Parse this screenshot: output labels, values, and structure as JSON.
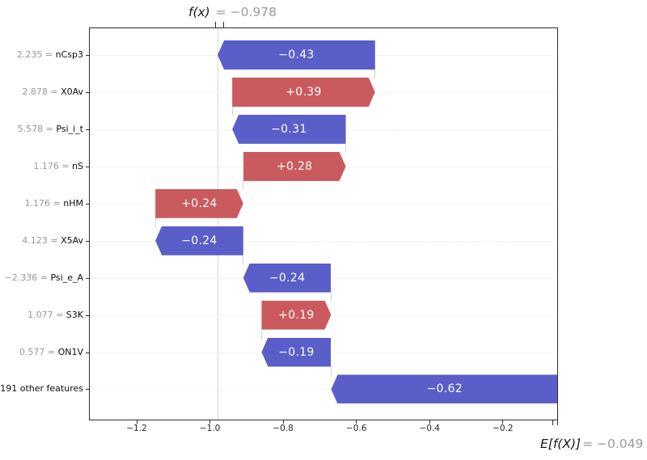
{
  "title": {
    "fx": "f(x)",
    "fx_value": "= −0.978"
  },
  "base_label": {
    "text": "E[f(X)]",
    "value": "= −0.049"
  },
  "chart_data": {
    "type": "bar",
    "subtype": "shap-waterfall",
    "fx": -0.978,
    "base_value": -0.049,
    "x_axis": {
      "min": -1.3303,
      "max": -0.0494,
      "ticks": [
        -1.2,
        -1.0,
        -0.8,
        -0.6,
        -0.4,
        -0.2
      ],
      "tick_labels": [
        "−1.2",
        "−1.0",
        "−0.8",
        "−0.6",
        "−0.4",
        "−0.2"
      ]
    },
    "colors": {
      "positive": "#CA5A5E",
      "negative": "#5A5EC8"
    },
    "rows": [
      {
        "prefix": "2.235 = ",
        "feature": "nCsp3",
        "shap": -0.43,
        "label": "−0.43",
        "start": -0.549,
        "end": -0.979,
        "sign": "neg"
      },
      {
        "prefix": "2.878 = ",
        "feature": "X0Av",
        "shap": 0.39,
        "label": "+0.39",
        "start": -0.939,
        "end": -0.549,
        "sign": "pos"
      },
      {
        "prefix": "5.578 = ",
        "feature": "Psi_i_t",
        "shap": -0.31,
        "label": "−0.31",
        "start": -0.629,
        "end": -0.939,
        "sign": "neg"
      },
      {
        "prefix": "1.176 = ",
        "feature": "nS",
        "shap": 0.28,
        "label": "+0.28",
        "start": -0.909,
        "end": -0.629,
        "sign": "pos"
      },
      {
        "prefix": "1.176 = ",
        "feature": "nHM",
        "shap": 0.24,
        "label": "+0.24",
        "start": -1.149,
        "end": -0.909,
        "sign": "pos"
      },
      {
        "prefix": "4.123 = ",
        "feature": "X5Av",
        "shap": -0.24,
        "label": "−0.24",
        "start": -0.909,
        "end": -1.149,
        "sign": "neg"
      },
      {
        "prefix": "−2.336 = ",
        "feature": "Psi_e_A",
        "shap": -0.24,
        "label": "−0.24",
        "start": -0.669,
        "end": -0.909,
        "sign": "neg"
      },
      {
        "prefix": "1.077 = ",
        "feature": "S3K",
        "shap": 0.19,
        "label": "+0.19",
        "start": -0.859,
        "end": -0.669,
        "sign": "pos"
      },
      {
        "prefix": "0.577 = ",
        "feature": "ON1V",
        "shap": -0.19,
        "label": "−0.19",
        "start": -0.669,
        "end": -0.859,
        "sign": "neg"
      },
      {
        "prefix": "",
        "feature": "191 other features",
        "shap": -0.62,
        "label": "−0.62",
        "start": -0.049,
        "end": -0.669,
        "sign": "neg"
      }
    ]
  }
}
